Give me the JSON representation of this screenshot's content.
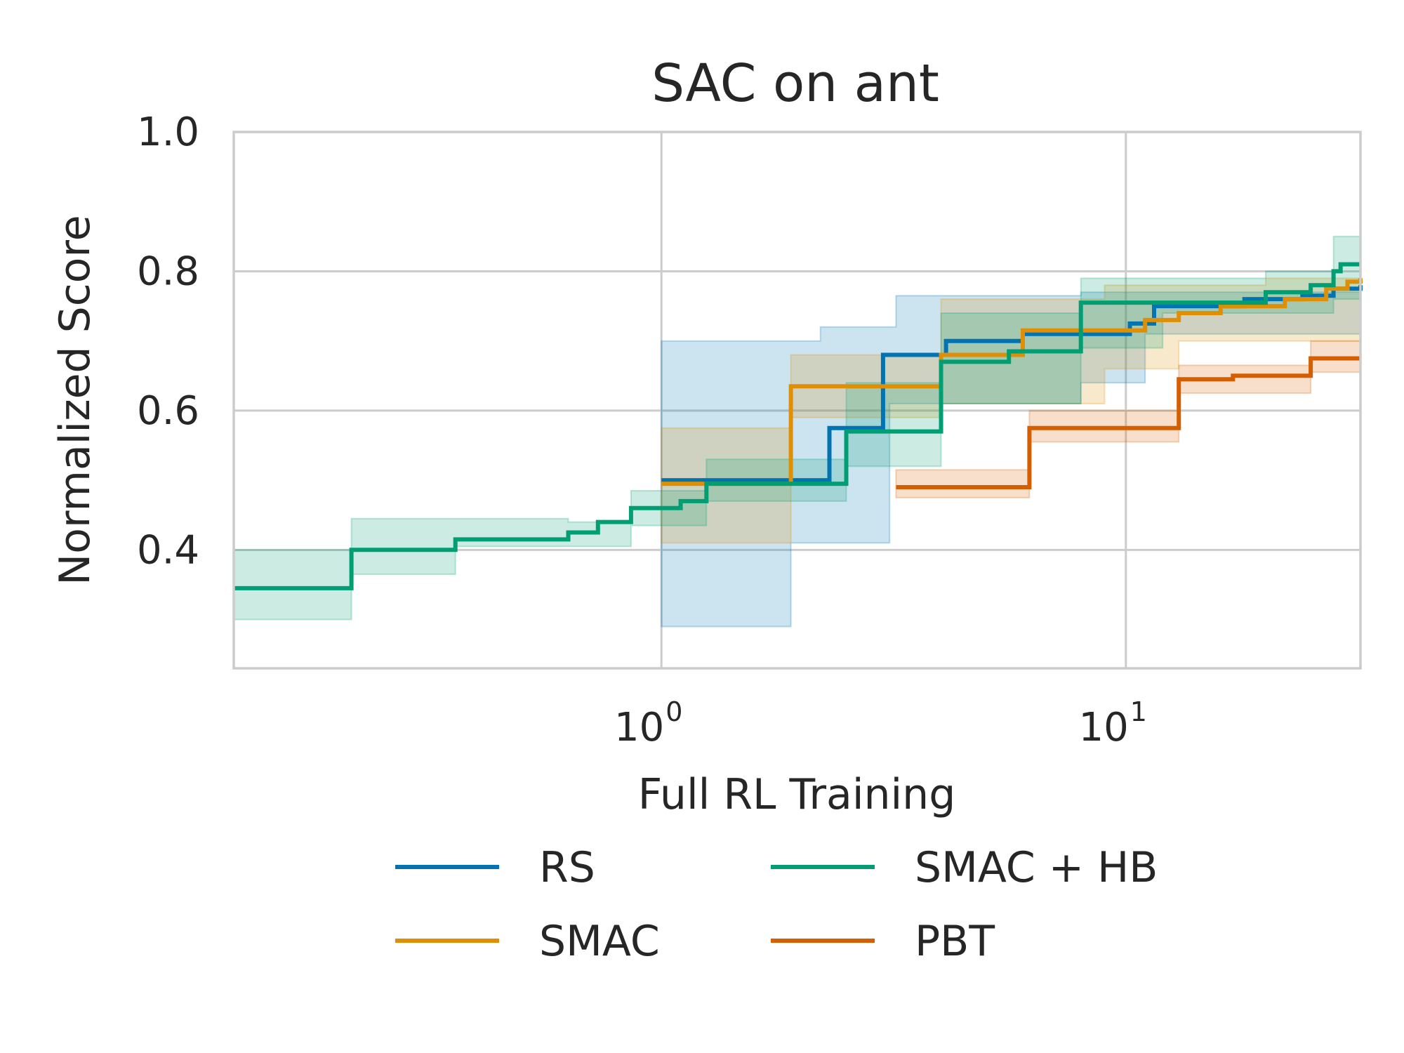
{
  "chart_data": {
    "type": "line",
    "title": "SAC on ant",
    "xlabel": "Full RL Training",
    "ylabel": "Normalized Score",
    "xscale": "log",
    "xlim": [
      0.12,
      32
    ],
    "ylim": [
      0.23,
      1.0
    ],
    "yticks": [
      "0.4",
      "0.6",
      "0.8",
      "1.0"
    ],
    "xticks": [
      {
        "value": 1,
        "base": "10",
        "exp": "0"
      },
      {
        "value": 10,
        "base": "10",
        "exp": "1"
      }
    ],
    "grid": true,
    "legend": {
      "placement": "bottom",
      "columns": 2
    },
    "series": [
      {
        "name": "RS",
        "color": "#0173b2",
        "steps": [
          [
            1.0,
            0.5
          ],
          [
            2.3,
            0.575
          ],
          [
            3.0,
            0.68
          ],
          [
            4.1,
            0.7
          ],
          [
            6.0,
            0.71
          ],
          [
            10.2,
            0.725
          ],
          [
            11.5,
            0.75
          ],
          [
            18.0,
            0.76
          ],
          [
            24.0,
            0.765
          ],
          [
            28.0,
            0.775
          ],
          [
            32.0,
            0.78
          ]
        ],
        "band_upper": [
          [
            1.0,
            0.7
          ],
          [
            2.2,
            0.72
          ],
          [
            3.2,
            0.765
          ],
          [
            8.0,
            0.77
          ],
          [
            32.0,
            0.8
          ]
        ],
        "band_lower": [
          [
            1.0,
            0.29
          ],
          [
            1.9,
            0.41
          ],
          [
            3.1,
            0.61
          ],
          [
            8.0,
            0.64
          ],
          [
            11.0,
            0.71
          ],
          [
            32.0,
            0.75
          ]
        ]
      },
      {
        "name": "SMAC",
        "color": "#de8f05",
        "steps": [
          [
            1.0,
            0.495
          ],
          [
            1.9,
            0.635
          ],
          [
            4.0,
            0.68
          ],
          [
            6.0,
            0.715
          ],
          [
            9.0,
            0.715
          ],
          [
            11.0,
            0.73
          ],
          [
            13.0,
            0.74
          ],
          [
            16.0,
            0.75
          ],
          [
            22.0,
            0.76
          ],
          [
            27.0,
            0.775
          ],
          [
            30.0,
            0.785
          ],
          [
            32.0,
            0.79
          ]
        ],
        "band_upper": [
          [
            1.0,
            0.575
          ],
          [
            1.9,
            0.68
          ],
          [
            4.0,
            0.76
          ],
          [
            9.0,
            0.78
          ],
          [
            20.0,
            0.79
          ],
          [
            32.0,
            0.81
          ]
        ],
        "band_lower": [
          [
            1.0,
            0.41
          ],
          [
            1.9,
            0.59
          ],
          [
            4.0,
            0.61
          ],
          [
            9.0,
            0.66
          ],
          [
            13.0,
            0.7
          ],
          [
            32.0,
            0.76
          ]
        ]
      },
      {
        "name": "SMAC + HB",
        "color": "#029e73",
        "steps": [
          [
            0.12,
            0.345
          ],
          [
            0.215,
            0.4
          ],
          [
            0.36,
            0.415
          ],
          [
            0.63,
            0.425
          ],
          [
            0.73,
            0.44
          ],
          [
            0.86,
            0.46
          ],
          [
            1.1,
            0.47
          ],
          [
            1.25,
            0.495
          ],
          [
            2.5,
            0.57
          ],
          [
            4.0,
            0.67
          ],
          [
            5.6,
            0.685
          ],
          [
            8.0,
            0.755
          ],
          [
            10.0,
            0.755
          ],
          [
            12.0,
            0.755
          ],
          [
            20.0,
            0.77
          ],
          [
            25.0,
            0.78
          ],
          [
            28.0,
            0.8
          ],
          [
            29.0,
            0.81
          ],
          [
            32.0,
            0.81
          ]
        ],
        "band_upper": [
          [
            0.12,
            0.4
          ],
          [
            0.215,
            0.445
          ],
          [
            0.36,
            0.445
          ],
          [
            0.63,
            0.44
          ],
          [
            0.86,
            0.485
          ],
          [
            1.25,
            0.53
          ],
          [
            2.5,
            0.64
          ],
          [
            4.0,
            0.74
          ],
          [
            8.0,
            0.79
          ],
          [
            20.0,
            0.8
          ],
          [
            28.0,
            0.85
          ],
          [
            32.0,
            0.86
          ]
        ],
        "band_lower": [
          [
            0.12,
            0.3
          ],
          [
            0.215,
            0.365
          ],
          [
            0.36,
            0.405
          ],
          [
            0.63,
            0.405
          ],
          [
            0.86,
            0.435
          ],
          [
            1.25,
            0.47
          ],
          [
            2.5,
            0.52
          ],
          [
            4.0,
            0.61
          ],
          [
            8.0,
            0.69
          ],
          [
            12.0,
            0.74
          ],
          [
            28.0,
            0.76
          ],
          [
            32.0,
            0.77
          ]
        ]
      },
      {
        "name": "PBT",
        "color": "#d55e00",
        "steps": [
          [
            3.2,
            0.49
          ],
          [
            6.2,
            0.575
          ],
          [
            13.0,
            0.645
          ],
          [
            17.0,
            0.65
          ],
          [
            25.0,
            0.675
          ],
          [
            29.0,
            0.675
          ],
          [
            32.0,
            0.675
          ]
        ],
        "band_upper": [
          [
            3.2,
            0.515
          ],
          [
            6.2,
            0.6
          ],
          [
            13.0,
            0.665
          ],
          [
            25.0,
            0.7
          ],
          [
            32.0,
            0.7
          ]
        ],
        "band_lower": [
          [
            3.2,
            0.475
          ],
          [
            6.2,
            0.555
          ],
          [
            13.0,
            0.625
          ],
          [
            25.0,
            0.655
          ],
          [
            32.0,
            0.655
          ]
        ]
      }
    ]
  }
}
